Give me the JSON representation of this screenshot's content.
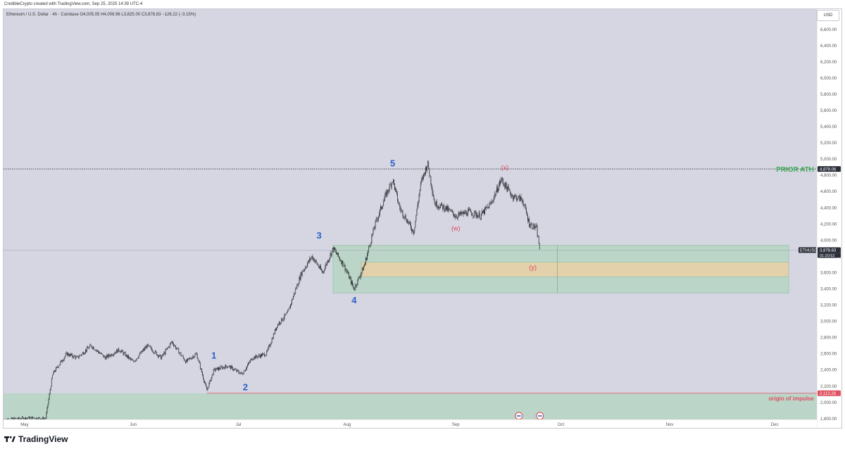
{
  "header": {
    "credit": "CredibleCrypto created with TradingView.com, Sep 25, 2025 14:39 UTC-4",
    "legend": "Ethereum / U.S. Dollar · 4h · Coinbase",
    "ohlc": "O4,005.05 H4,008.96 L3,825.00 C3,878.83 −126.22 (−3.15%)"
  },
  "currency_button": "USD",
  "footer": {
    "brand": "TradingView"
  },
  "colors": {
    "background": "#d6d6e3",
    "candles": "#1e1e24",
    "wave_labels": "#2962c9",
    "corrective_labels": "#e0435a",
    "support_zone": "#a9d3b5",
    "target_zone": "#f3cf9e",
    "prior_ath": "#3caa52",
    "origin_line": "#e05060"
  },
  "chart_data": {
    "type": "candlestick",
    "symbol": "ETHUSD",
    "timeframe": "4h",
    "x_ticks": [
      "May",
      "Jun",
      "Jul",
      "Aug",
      "Sep",
      "Oct",
      "Nov",
      "Dec"
    ],
    "y_ticks": [
      "1,800.00",
      "2,000.00",
      "2,200.00",
      "2,400.00",
      "2,600.00",
      "2,800.00",
      "3,000.00",
      "3,200.00",
      "3,400.00",
      "3,600.00",
      "3,800.00",
      "4,000.00",
      "4,200.00",
      "4,400.00",
      "4,600.00",
      "4,800.00",
      "5,000.00",
      "5,200.00",
      "5,400.00",
      "5,600.00",
      "5,800.00",
      "6,000.00",
      "6,200.00",
      "6,400.00",
      "6,600.00"
    ],
    "ylim": [
      1790,
      6850
    ],
    "price_path": [
      [
        "2025-04-25",
        1790
      ],
      [
        "2025-05-03",
        1810
      ],
      [
        "2025-05-07",
        1800
      ],
      [
        "2025-05-09",
        2350
      ],
      [
        "2025-05-13",
        2600
      ],
      [
        "2025-05-16",
        2550
      ],
      [
        "2025-05-20",
        2700
      ],
      [
        "2025-05-24",
        2550
      ],
      [
        "2025-05-28",
        2650
      ],
      [
        "2025-06-01",
        2500
      ],
      [
        "2025-06-05",
        2700
      ],
      [
        "2025-06-09",
        2550
      ],
      [
        "2025-06-12",
        2750
      ],
      [
        "2025-06-16",
        2500
      ],
      [
        "2025-06-19",
        2600
      ],
      [
        "2025-06-22",
        2150
      ],
      [
        "2025-06-24",
        2400
      ],
      [
        "2025-06-28",
        2450
      ],
      [
        "2025-07-02",
        2350
      ],
      [
        "2025-07-05",
        2550
      ],
      [
        "2025-07-09",
        2600
      ],
      [
        "2025-07-12",
        2950
      ],
      [
        "2025-07-15",
        3100
      ],
      [
        "2025-07-19",
        3600
      ],
      [
        "2025-07-22",
        3800
      ],
      [
        "2025-07-25",
        3600
      ],
      [
        "2025-07-28",
        3900
      ],
      [
        "2025-07-31",
        3700
      ],
      [
        "2025-08-03",
        3400
      ],
      [
        "2025-08-06",
        3700
      ],
      [
        "2025-08-09",
        4200
      ],
      [
        "2025-08-12",
        4550
      ],
      [
        "2025-08-14",
        4750
      ],
      [
        "2025-08-16",
        4400
      ],
      [
        "2025-08-20",
        4100
      ],
      [
        "2025-08-22",
        4700
      ],
      [
        "2025-08-24",
        4950
      ],
      [
        "2025-08-26",
        4450
      ],
      [
        "2025-08-29",
        4400
      ],
      [
        "2025-09-01",
        4300
      ],
      [
        "2025-09-05",
        4350
      ],
      [
        "2025-09-08",
        4300
      ],
      [
        "2025-09-11",
        4450
      ],
      [
        "2025-09-14",
        4750
      ],
      [
        "2025-09-17",
        4550
      ],
      [
        "2025-09-20",
        4500
      ],
      [
        "2025-09-22",
        4200
      ],
      [
        "2025-09-24",
        4150
      ],
      [
        "2025-09-25",
        3880
      ]
    ],
    "current_price": "3,878.83",
    "countdown": "01:20:52",
    "prior_ath_price": "4,879.06",
    "origin_price": "2,113.29",
    "wave_labels": [
      {
        "text": "1",
        "date": "2025-06-24",
        "price": 2540
      },
      {
        "text": "2",
        "date": "2025-07-03",
        "price": 2150
      },
      {
        "text": "3",
        "date": "2025-07-24",
        "price": 4020
      },
      {
        "text": "4",
        "date": "2025-08-03",
        "price": 3220
      },
      {
        "text": "5",
        "date": "2025-08-14",
        "price": 4910
      }
    ],
    "corrective_labels": [
      {
        "text": "(w)",
        "date": "2025-09-01",
        "price": 4120
      },
      {
        "text": "(x)",
        "date": "2025-09-15",
        "price": 4870
      },
      {
        "text": "(y)",
        "date": "2025-09-23",
        "price": 3640
      }
    ],
    "annotations": {
      "prior_ath": "PRIOR ATH",
      "origin": "origin of impulse"
    },
    "zones": [
      {
        "kind": "support",
        "from_date": "2025-07-28",
        "to_date": "2025-12-05",
        "low": 3350,
        "high": 3940
      },
      {
        "kind": "target",
        "from_date": "2025-08-05",
        "to_date": "2025-12-05",
        "low": 3550,
        "high": 3730
      },
      {
        "kind": "origin",
        "from_date": "2025-04-25",
        "to_date": "2025-12-13",
        "low": 1790,
        "high": 2113.29
      }
    ]
  }
}
